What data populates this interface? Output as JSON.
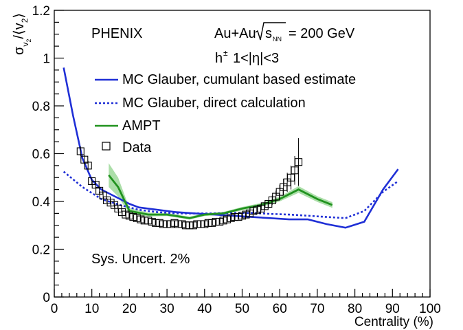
{
  "chart_data": {
    "type": "line",
    "xlabel": "Centrality (%)",
    "ylabel_main": "σ",
    "ylabel_sub": "v",
    "ylabel_subsub": "2",
    "ylabel_rest_open": "/⟨v",
    "ylabel_rest_sub": "2",
    "ylabel_rest_close": "⟩",
    "xlim": [
      0,
      100
    ],
    "ylim": [
      0,
      1.2
    ],
    "x_ticks": [
      0,
      10,
      20,
      30,
      40,
      50,
      60,
      70,
      80,
      90,
      100
    ],
    "y_ticks": [
      0,
      0.2,
      0.4,
      0.6,
      0.8,
      1,
      1.2
    ],
    "y_tick_labels": [
      "0",
      "0.2",
      "0.4",
      "0.6",
      "0.8",
      "1",
      "1.2"
    ],
    "annotations": {
      "experiment": "PHENIX",
      "system_prefix": "Au+Au",
      "system_sqrt": "s",
      "system_sub": "NN",
      "system_suffix": "= 200 GeV",
      "particle_h": "h",
      "particle_sup": "±",
      "particle_cut": "1<|η|<3",
      "sys_uncert": "Sys. Uncert. 2%"
    },
    "legend": [
      {
        "key": "cumulant",
        "label": "MC Glauber, cumulant based estimate",
        "color": "#1f2fd6",
        "style": "solid"
      },
      {
        "key": "direct",
        "label": "MC Glauber, direct calculation",
        "color": "#1f2fd6",
        "style": "dotted"
      },
      {
        "key": "ampt",
        "label": "AMPT",
        "color": "#21931f",
        "style": "solid"
      },
      {
        "key": "data",
        "label": "Data",
        "color": "#000000",
        "style": "open-square"
      }
    ],
    "series": [
      {
        "key": "cumulant",
        "name": "MC Glauber, cumulant based estimate",
        "color": "#1f2fd6",
        "x": [
          2.5,
          5,
          7.5,
          10,
          12.5,
          15,
          17.5,
          20,
          22.5,
          27.5,
          32.5,
          37.5,
          42.5,
          47.5,
          52.5,
          57.5,
          62.5,
          67.5,
          72.5,
          77.5,
          82.5,
          87.5,
          91.5
        ],
        "y": [
          0.96,
          0.76,
          0.58,
          0.49,
          0.45,
          0.43,
          0.41,
          0.39,
          0.375,
          0.365,
          0.355,
          0.35,
          0.345,
          0.34,
          0.335,
          0.33,
          0.325,
          0.325,
          0.305,
          0.29,
          0.315,
          0.45,
          0.535
        ]
      },
      {
        "key": "direct",
        "name": "MC Glauber, direct calculation",
        "color": "#1f2fd6",
        "x": [
          2.5,
          7.5,
          12.5,
          17.5,
          22.5,
          27.5,
          32.5,
          37.5,
          42.5,
          47.5,
          52.5,
          57.5,
          62.5,
          67.5,
          72.5,
          77.5,
          82.5,
          87.5,
          91.5
        ],
        "y": [
          0.525,
          0.46,
          0.41,
          0.385,
          0.365,
          0.355,
          0.35,
          0.35,
          0.35,
          0.352,
          0.352,
          0.348,
          0.345,
          0.34,
          0.335,
          0.33,
          0.36,
          0.44,
          0.485
        ]
      },
      {
        "key": "ampt",
        "name": "AMPT",
        "color": "#21931f",
        "band_color": "#9ed89a",
        "x": [
          14.5,
          17,
          20,
          25,
          30,
          36,
          40,
          45,
          50,
          55,
          60,
          65,
          70,
          74
        ],
        "y": [
          0.51,
          0.46,
          0.36,
          0.345,
          0.345,
          0.33,
          0.345,
          0.35,
          0.37,
          0.385,
          0.41,
          0.45,
          0.41,
          0.385
        ],
        "err": [
          0.05,
          0.04,
          0.012,
          0.008,
          0.006,
          0.006,
          0.006,
          0.006,
          0.007,
          0.008,
          0.01,
          0.014,
          0.012,
          0.012
        ]
      },
      {
        "key": "data",
        "name": "Data",
        "color": "#000000",
        "x": [
          7,
          8,
          9,
          10,
          11,
          12,
          13,
          14,
          15,
          16,
          17,
          18,
          19,
          20,
          21,
          22,
          23,
          24,
          25,
          26,
          27,
          28,
          29,
          30,
          31,
          32,
          33,
          34,
          35,
          36,
          37,
          38,
          39,
          40,
          41,
          42,
          43,
          44,
          45,
          46,
          47,
          48,
          49,
          50,
          51,
          52,
          53,
          54,
          55,
          56,
          57,
          58,
          59,
          60,
          61,
          62,
          63,
          64,
          65
        ],
        "y": [
          0.61,
          0.575,
          0.55,
          0.485,
          0.47,
          0.445,
          0.425,
          0.405,
          0.395,
          0.385,
          0.37,
          0.355,
          0.345,
          0.34,
          0.335,
          0.33,
          0.325,
          0.32,
          0.32,
          0.315,
          0.31,
          0.31,
          0.305,
          0.305,
          0.305,
          0.31,
          0.305,
          0.305,
          0.3,
          0.3,
          0.3,
          0.305,
          0.305,
          0.305,
          0.31,
          0.31,
          0.315,
          0.315,
          0.32,
          0.325,
          0.33,
          0.335,
          0.335,
          0.34,
          0.345,
          0.35,
          0.36,
          0.365,
          0.37,
          0.38,
          0.39,
          0.405,
          0.42,
          0.44,
          0.46,
          0.48,
          0.5,
          0.53,
          0.565
        ],
        "err": [
          0.02,
          0.02,
          0.02,
          0.015,
          0.015,
          0.012,
          0.012,
          0.01,
          0.01,
          0.01,
          0.01,
          0.01,
          0.008,
          0.008,
          0.008,
          0.008,
          0.008,
          0.008,
          0.008,
          0.008,
          0.008,
          0.008,
          0.008,
          0.008,
          0.008,
          0.008,
          0.008,
          0.008,
          0.008,
          0.008,
          0.008,
          0.008,
          0.008,
          0.008,
          0.008,
          0.008,
          0.008,
          0.008,
          0.008,
          0.008,
          0.008,
          0.008,
          0.008,
          0.008,
          0.01,
          0.01,
          0.01,
          0.012,
          0.012,
          0.015,
          0.015,
          0.02,
          0.025,
          0.03,
          0.035,
          0.04,
          0.05,
          0.06,
          0.1
        ]
      }
    ]
  }
}
